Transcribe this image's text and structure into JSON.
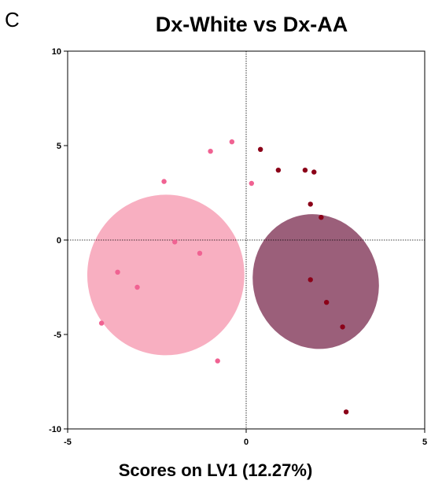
{
  "panel_label": "C",
  "chart_data": {
    "type": "scatter",
    "title": "Dx-White vs Dx-AA",
    "xlabel": "Scores on LV1 (12.27%)",
    "ylabel": "",
    "xlim": [
      -5,
      5
    ],
    "ylim": [
      -10,
      10
    ],
    "xticks": [
      -5,
      0,
      5
    ],
    "yticks": [
      10,
      5,
      0,
      -5,
      -10
    ],
    "grid": false,
    "zero_lines": true,
    "series": [
      {
        "color": "#f06292",
        "ellipse_color": "#f7a1b6",
        "ellipse": {
          "cx": -2.25,
          "cy": -1.85,
          "rx": 4.4,
          "ry": 8.5,
          "angle": -3
        },
        "points": [
          {
            "x": -0.4,
            "y": 5.2
          },
          {
            "x": -1.0,
            "y": 4.7
          },
          {
            "x": -2.3,
            "y": 3.1
          },
          {
            "x": 0.15,
            "y": 3.0
          },
          {
            "x": -2.0,
            "y": -0.1
          },
          {
            "x": -1.3,
            "y": -0.7
          },
          {
            "x": -3.6,
            "y": -1.7
          },
          {
            "x": -3.05,
            "y": -2.5
          },
          {
            "x": -4.05,
            "y": -4.4
          },
          {
            "x": -0.8,
            "y": -6.4
          }
        ]
      },
      {
        "color": "#8b0018",
        "ellipse_color": "#7a2a4e",
        "ellipse": {
          "cx": 1.95,
          "cy": -2.2,
          "rx": 3.5,
          "ry": 7.2,
          "angle": 20
        },
        "points": [
          {
            "x": 0.4,
            "y": 4.8
          },
          {
            "x": 0.9,
            "y": 3.7
          },
          {
            "x": 1.65,
            "y": 3.7
          },
          {
            "x": 1.9,
            "y": 3.6
          },
          {
            "x": 1.8,
            "y": 1.9
          },
          {
            "x": 2.1,
            "y": 1.2
          },
          {
            "x": 1.8,
            "y": -2.1
          },
          {
            "x": 2.25,
            "y": -3.3
          },
          {
            "x": 2.7,
            "y": -4.6
          },
          {
            "x": 2.8,
            "y": -9.1
          }
        ]
      }
    ]
  }
}
